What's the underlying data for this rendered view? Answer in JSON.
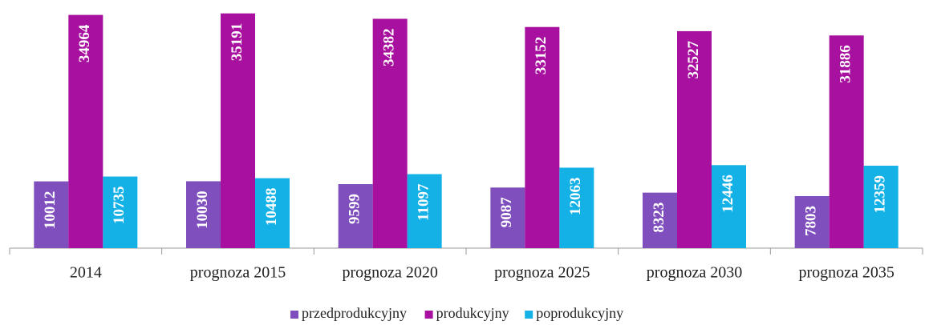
{
  "chart_data": {
    "type": "bar",
    "categories": [
      "2014",
      "prognoza 2015",
      "prognoza 2020",
      "prognoza 2025",
      "prognoza 2030",
      "prognoza 2035"
    ],
    "series": [
      {
        "name": "przedprodukcyjny",
        "color": "#7f4fbd",
        "values": [
          10012,
          10030,
          9599,
          9087,
          8323,
          7803
        ]
      },
      {
        "name": "produkcyjny",
        "color": "#a8109f",
        "values": [
          34964,
          35191,
          34382,
          33152,
          32527,
          31886
        ]
      },
      {
        "name": "poprodukcyjny",
        "color": "#14b1e7",
        "values": [
          10735,
          10488,
          11097,
          12063,
          12446,
          12359
        ]
      }
    ],
    "ylim": [
      0,
      36000
    ],
    "legend": "bottom"
  }
}
